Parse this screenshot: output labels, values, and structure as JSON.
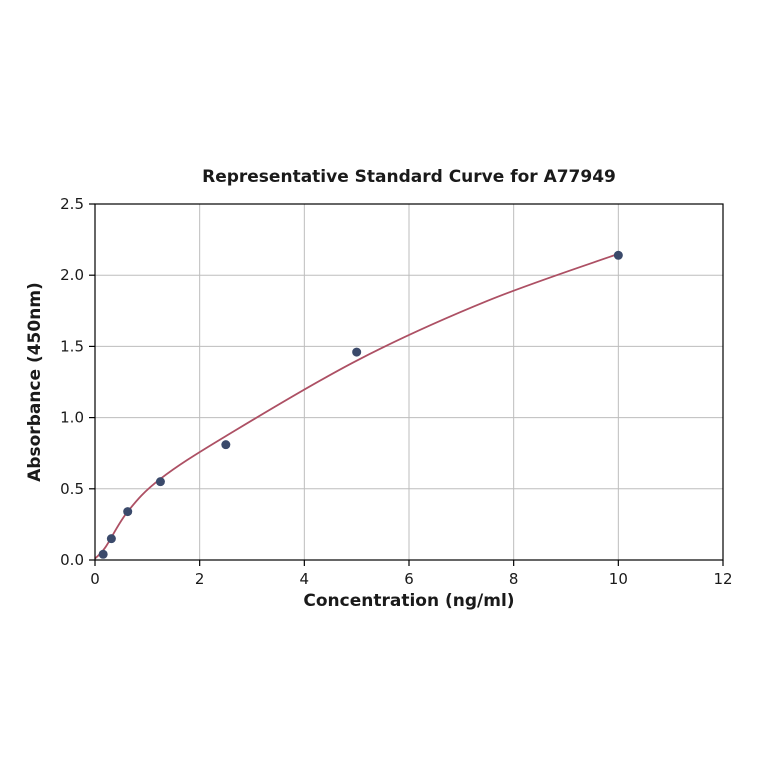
{
  "chart_data": {
    "type": "scatter",
    "title": "Representative Standard Curve for A77949",
    "xlabel": "Concentration (ng/ml)",
    "ylabel": "Absorbance (450nm)",
    "xlim": [
      0,
      12
    ],
    "ylim": [
      0,
      2.5
    ],
    "xticks": [
      0,
      2,
      4,
      6,
      8,
      10,
      12
    ],
    "xtick_labels": [
      "0",
      "2",
      "4",
      "6",
      "8",
      "10",
      "12"
    ],
    "yticks": [
      0.0,
      0.5,
      1.0,
      1.5,
      2.0,
      2.5
    ],
    "ytick_labels": [
      "0.0",
      "0.5",
      "1.0",
      "1.5",
      "2.0",
      "2.5"
    ],
    "grid": true,
    "legend": "none",
    "series": [
      {
        "name": "standards",
        "x": [
          0.156,
          0.313,
          0.625,
          1.25,
          2.5,
          5,
          10
        ],
        "y": [
          0.04,
          0.15,
          0.34,
          0.55,
          0.81,
          1.46,
          2.14
        ]
      }
    ],
    "fit_curve_anchors": [
      [
        0,
        0.01
      ],
      [
        0.2,
        0.09
      ],
      [
        0.625,
        0.34
      ],
      [
        1.25,
        0.57
      ],
      [
        2.5,
        0.87
      ],
      [
        5.0,
        1.4
      ],
      [
        7.5,
        1.82
      ],
      [
        10.0,
        2.15
      ]
    ],
    "colors": {
      "point": "#3b4a6b",
      "curve": "#ad5064",
      "grid": "#bdbdbd",
      "axis": "#000000",
      "text": "#1a1a1a"
    }
  }
}
